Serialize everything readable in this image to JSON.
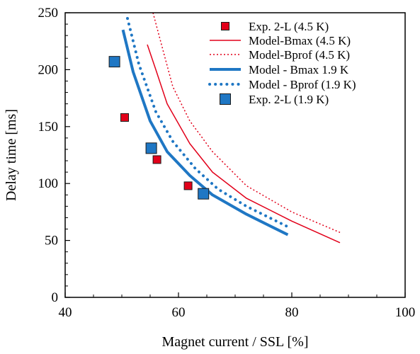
{
  "chart_data": {
    "type": "scatter",
    "xlabel": "Magnet current / SSL [%]",
    "ylabel": "Delay time [ms]",
    "xlim": [
      40,
      100
    ],
    "ylim": [
      0,
      250
    ],
    "xticks": [
      40,
      60,
      80,
      100
    ],
    "yticks": [
      0,
      50,
      100,
      150,
      200,
      250
    ],
    "grid": false,
    "legend_position": "top-right",
    "series": [
      {
        "name": "Exp. 2-L (4.5 K)",
        "kind": "marker",
        "color": "#e2001a",
        "marker_size": 11,
        "points": [
          [
            50.5,
            158
          ],
          [
            56.2,
            121
          ],
          [
            61.7,
            98
          ]
        ]
      },
      {
        "name": "Model-Bmax (4.5 K)",
        "kind": "line",
        "style": "solid",
        "color": "#e2001a",
        "width": 1.5,
        "points": [
          [
            54.5,
            222
          ],
          [
            56,
            200
          ],
          [
            58,
            170
          ],
          [
            62,
            135
          ],
          [
            66,
            110
          ],
          [
            72,
            87
          ],
          [
            80,
            67
          ],
          [
            88.5,
            48
          ]
        ]
      },
      {
        "name": "Model-Bprof (4.5 K)",
        "kind": "line",
        "style": "dotted",
        "color": "#e2001a",
        "width": 1.5,
        "points": [
          [
            55.5,
            250
          ],
          [
            57,
            222
          ],
          [
            59,
            185
          ],
          [
            62,
            155
          ],
          [
            66,
            128
          ],
          [
            72,
            98
          ],
          [
            80,
            75
          ],
          [
            88.5,
            57
          ]
        ]
      },
      {
        "name": "Model - Bmax 1.9 K",
        "kind": "line",
        "style": "solid",
        "color": "#1f77c4",
        "width": 4,
        "points": [
          [
            50.2,
            235
          ],
          [
            52,
            198
          ],
          [
            55,
            155
          ],
          [
            58,
            128
          ],
          [
            62,
            107
          ],
          [
            66,
            90
          ],
          [
            72,
            73
          ],
          [
            79.3,
            55
          ]
        ]
      },
      {
        "name": "Model - Bprof (1.9 K)",
        "kind": "line",
        "style": "dotted",
        "color": "#1f77c4",
        "width": 4,
        "points": [
          [
            51,
            245
          ],
          [
            53,
            205
          ],
          [
            56,
            163
          ],
          [
            59,
            137
          ],
          [
            63,
            113
          ],
          [
            67,
            95
          ],
          [
            72,
            80
          ],
          [
            79.3,
            62
          ]
        ]
      },
      {
        "name": "Exp. 2-L (1.9 K)",
        "kind": "marker",
        "color": "#1f77c4",
        "marker_size": 15,
        "points": [
          [
            48.7,
            207
          ],
          [
            55.2,
            131
          ],
          [
            64.4,
            91
          ]
        ]
      }
    ]
  }
}
